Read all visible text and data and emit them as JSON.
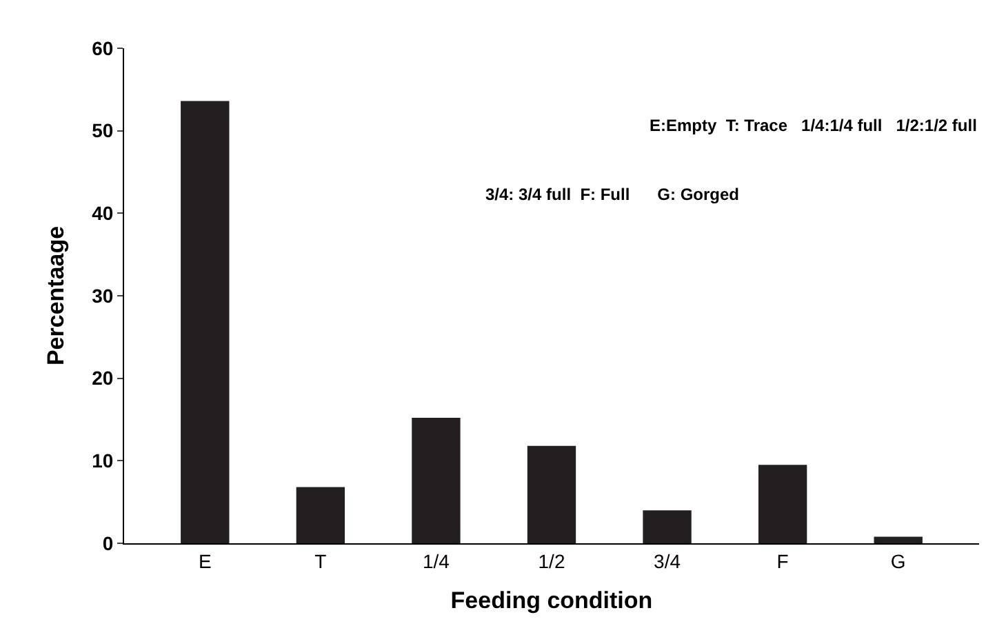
{
  "chart_data": {
    "type": "bar",
    "xlabel": "Feeding condition",
    "ylabel": "Percentaage",
    "categories": [
      "E",
      "T",
      "1/4",
      "1/2",
      "3/4",
      "F",
      "G"
    ],
    "values": [
      53.6,
      6.8,
      15.2,
      11.8,
      4.0,
      9.5,
      0.8
    ],
    "color": "#231f20",
    "ylim": [
      0,
      60
    ],
    "yticks": [
      0,
      10,
      20,
      30,
      40,
      50,
      60
    ],
    "annotations": [
      "E:Empty  T: Trace   1/4:1/4 full   1/2:1/2 full",
      "3/4: 3/4 full  F: Full      G: Gorged"
    ]
  }
}
